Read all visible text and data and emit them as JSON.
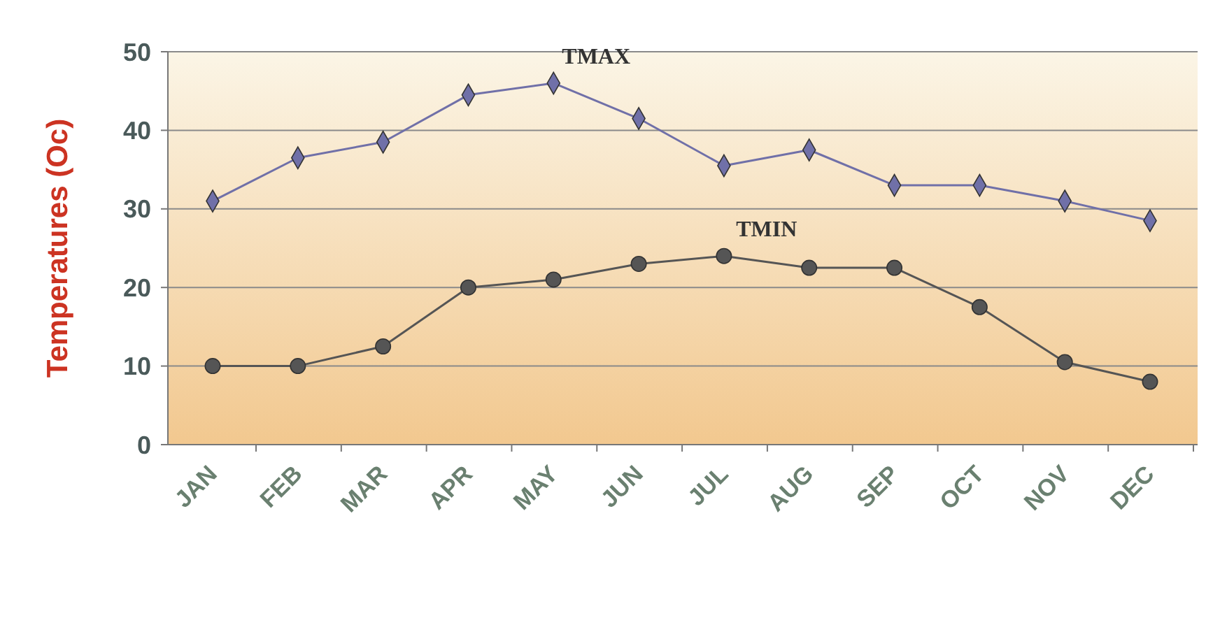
{
  "chart_data": {
    "type": "line",
    "ylabel": "Temperatures (Oc)",
    "categories": [
      "JAN",
      "FEB",
      "MAR",
      "APR",
      "MAY",
      "JUN",
      "JUL",
      "AUG",
      "SEP",
      "OCT",
      "NOV",
      "DEC"
    ],
    "series": [
      {
        "name": "TMAX",
        "color": "#7070a8",
        "marker": "diamond",
        "values": [
          31,
          36.5,
          38.5,
          44.5,
          46,
          41.5,
          35.5,
          37.5,
          33,
          33,
          31,
          28.5
        ]
      },
      {
        "name": "TMIN",
        "color": "#555555",
        "marker": "circle",
        "values": [
          10,
          10,
          12.5,
          20,
          21,
          23,
          24,
          22.5,
          22.5,
          17.5,
          10.5,
          8
        ]
      }
    ],
    "ylim": [
      0,
      50
    ],
    "yticks": [
      0,
      10,
      20,
      30,
      40,
      50
    ],
    "grid": "y"
  }
}
